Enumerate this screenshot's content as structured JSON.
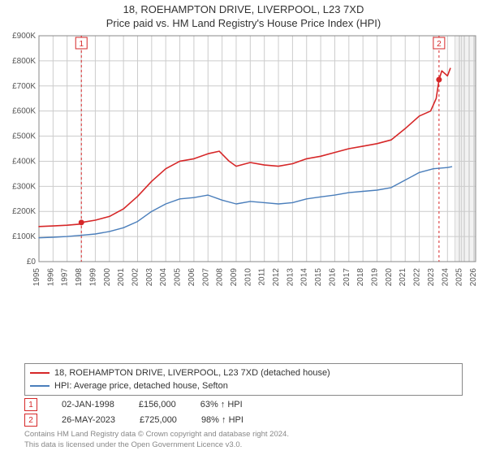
{
  "title_line1": "18, ROEHAMPTON DRIVE, LIVERPOOL, L23 7XD",
  "title_line2": "Price paid vs. HM Land Registry's House Price Index (HPI)",
  "chart": {
    "type": "line",
    "background_color": "#ffffff",
    "grid_color": "#cccccc",
    "plot_border_color": "#888888",
    "axis_font_size": 10,
    "axis_text_color": "#555555",
    "y_axis": {
      "min": 0,
      "max": 900000,
      "tick_step": 100000,
      "tick_labels": [
        "£0",
        "£100K",
        "£200K",
        "£300K",
        "£400K",
        "£500K",
        "£600K",
        "£700K",
        "£800K",
        "£900K"
      ]
    },
    "x_axis": {
      "min": 1995,
      "max": 2026,
      "ticks": [
        1995,
        1996,
        1997,
        1998,
        1999,
        2000,
        2001,
        2002,
        2003,
        2004,
        2005,
        2006,
        2007,
        2008,
        2009,
        2010,
        2011,
        2012,
        2013,
        2014,
        2015,
        2016,
        2017,
        2018,
        2019,
        2020,
        2021,
        2022,
        2023,
        2024,
        2025,
        2026
      ]
    },
    "future_shade_from_year": 2024.5,
    "future_shade_color": "#e9e9e9",
    "series": [
      {
        "name": "price_paid",
        "label": "18, ROEHAMPTON DRIVE, LIVERPOOL, L23 7XD (detached house)",
        "color": "#d62728",
        "line_width": 1.6,
        "data": [
          [
            1995,
            140000
          ],
          [
            1996,
            142000
          ],
          [
            1997,
            145000
          ],
          [
            1998,
            150000
          ],
          [
            1998.01,
            156000
          ],
          [
            1999,
            165000
          ],
          [
            2000,
            180000
          ],
          [
            2001,
            210000
          ],
          [
            2002,
            260000
          ],
          [
            2003,
            320000
          ],
          [
            2004,
            370000
          ],
          [
            2005,
            400000
          ],
          [
            2006,
            410000
          ],
          [
            2007,
            430000
          ],
          [
            2007.8,
            440000
          ],
          [
            2008.5,
            400000
          ],
          [
            2009,
            380000
          ],
          [
            2010,
            395000
          ],
          [
            2011,
            385000
          ],
          [
            2012,
            380000
          ],
          [
            2013,
            390000
          ],
          [
            2014,
            410000
          ],
          [
            2015,
            420000
          ],
          [
            2016,
            435000
          ],
          [
            2017,
            450000
          ],
          [
            2018,
            460000
          ],
          [
            2019,
            470000
          ],
          [
            2020,
            485000
          ],
          [
            2021,
            530000
          ],
          [
            2022,
            580000
          ],
          [
            2022.8,
            600000
          ],
          [
            2023.2,
            650000
          ],
          [
            2023.4,
            725000
          ],
          [
            2023.6,
            760000
          ],
          [
            2024,
            740000
          ],
          [
            2024.2,
            770000
          ]
        ]
      },
      {
        "name": "hpi",
        "label": "HPI: Average price, detached house, Sefton",
        "color": "#4a7ebb",
        "line_width": 1.4,
        "data": [
          [
            1995,
            95000
          ],
          [
            1996,
            97000
          ],
          [
            1997,
            100000
          ],
          [
            1998,
            105000
          ],
          [
            1999,
            110000
          ],
          [
            2000,
            120000
          ],
          [
            2001,
            135000
          ],
          [
            2002,
            160000
          ],
          [
            2003,
            200000
          ],
          [
            2004,
            230000
          ],
          [
            2005,
            250000
          ],
          [
            2006,
            255000
          ],
          [
            2007,
            265000
          ],
          [
            2008,
            245000
          ],
          [
            2009,
            230000
          ],
          [
            2010,
            240000
          ],
          [
            2011,
            235000
          ],
          [
            2012,
            230000
          ],
          [
            2013,
            235000
          ],
          [
            2014,
            250000
          ],
          [
            2015,
            258000
          ],
          [
            2016,
            265000
          ],
          [
            2017,
            275000
          ],
          [
            2018,
            280000
          ],
          [
            2019,
            285000
          ],
          [
            2020,
            295000
          ],
          [
            2021,
            325000
          ],
          [
            2022,
            355000
          ],
          [
            2023,
            370000
          ],
          [
            2024,
            375000
          ],
          [
            2024.3,
            378000
          ]
        ]
      }
    ],
    "sale_markers": [
      {
        "n": "1",
        "year": 1998.01,
        "price": 156000,
        "color": "#d62728",
        "dashed_line_color": "#d62728"
      },
      {
        "n": "2",
        "year": 2023.4,
        "price": 725000,
        "color": "#d62728",
        "dashed_line_color": "#d62728"
      }
    ]
  },
  "legend": {
    "border_color": "#888888",
    "items": [
      {
        "color": "#d62728",
        "label": "18, ROEHAMPTON DRIVE, LIVERPOOL, L23 7XD (detached house)"
      },
      {
        "color": "#4a7ebb",
        "label": "HPI: Average price, detached house, Sefton"
      }
    ]
  },
  "sales_table": {
    "rows": [
      {
        "marker": "1",
        "marker_color": "#d62728",
        "date": "02-JAN-1998",
        "price": "£156,000",
        "pct": "63% ↑ HPI"
      },
      {
        "marker": "2",
        "marker_color": "#d62728",
        "date": "26-MAY-2023",
        "price": "£725,000",
        "pct": "98% ↑ HPI"
      }
    ]
  },
  "footer_line1": "Contains HM Land Registry data © Crown copyright and database right 2024.",
  "footer_line2": "This data is licensed under the Open Government Licence v3.0."
}
